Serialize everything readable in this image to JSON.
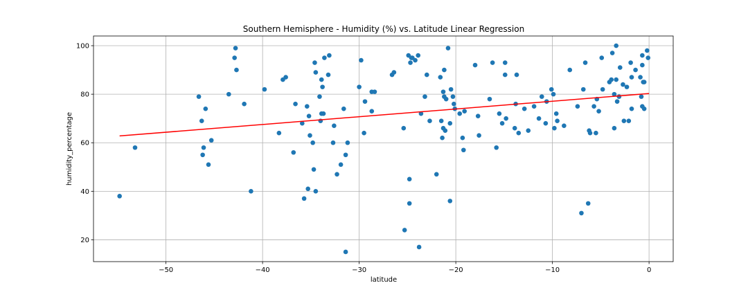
{
  "chart_data": {
    "type": "scatter",
    "title": "Southern Hemisphere - Humidity (%) vs. Latitude Linear Regression",
    "xlabel": "latitude",
    "ylabel": "humidity_percentage",
    "xlim": [
      -57.5,
      2.5
    ],
    "ylim": [
      11,
      104
    ],
    "xticks": [
      -50,
      -40,
      -30,
      -20,
      -10,
      0
    ],
    "yticks": [
      20,
      40,
      60,
      80,
      100
    ],
    "xtick_labels": [
      "−50",
      "−40",
      "−30",
      "−20",
      "−10",
      "0"
    ],
    "ytick_labels": [
      "20",
      "40",
      "60",
      "80",
      "100"
    ],
    "grid": true,
    "point_color": "#1f77b4",
    "line_color": "#ff0000",
    "regression": {
      "x": [
        -54.8,
        0.0
      ],
      "y": [
        62.8,
        80.3
      ]
    },
    "points": [
      [
        -54.8,
        38
      ],
      [
        -53.2,
        58
      ],
      [
        -46.6,
        79
      ],
      [
        -46.3,
        69
      ],
      [
        -46.2,
        55
      ],
      [
        -46.1,
        58
      ],
      [
        -45.9,
        74
      ],
      [
        -45.6,
        51
      ],
      [
        -45.3,
        61
      ],
      [
        -43.5,
        80
      ],
      [
        -42.9,
        95
      ],
      [
        -42.8,
        99
      ],
      [
        -42.7,
        90
      ],
      [
        -41.9,
        76
      ],
      [
        -41.2,
        40
      ],
      [
        -39.8,
        82
      ],
      [
        -38.3,
        64
      ],
      [
        -37.9,
        86
      ],
      [
        -37.6,
        87
      ],
      [
        -36.8,
        56
      ],
      [
        -36.6,
        76
      ],
      [
        -35.9,
        68
      ],
      [
        -35.7,
        37
      ],
      [
        -35.4,
        75
      ],
      [
        -35.3,
        41
      ],
      [
        -35.2,
        71
      ],
      [
        -35.1,
        63
      ],
      [
        -34.8,
        60
      ],
      [
        -34.7,
        49
      ],
      [
        -34.6,
        93
      ],
      [
        -34.5,
        40
      ],
      [
        -34.5,
        89
      ],
      [
        -34.1,
        79
      ],
      [
        -34.0,
        69
      ],
      [
        -33.9,
        86
      ],
      [
        -33.9,
        72
      ],
      [
        -33.8,
        83
      ],
      [
        -33.7,
        72
      ],
      [
        -33.6,
        95
      ],
      [
        -33.2,
        88
      ],
      [
        -33.1,
        96
      ],
      [
        -32.7,
        60
      ],
      [
        -32.6,
        67
      ],
      [
        -32.3,
        47
      ],
      [
        -31.9,
        51
      ],
      [
        -31.6,
        74
      ],
      [
        -31.4,
        55
      ],
      [
        -31.4,
        15
      ],
      [
        -31.2,
        60
      ],
      [
        -30.0,
        83
      ],
      [
        -29.8,
        94
      ],
      [
        -29.5,
        64
      ],
      [
        -29.4,
        77
      ],
      [
        -28.7,
        73
      ],
      [
        -28.7,
        81
      ],
      [
        -28.4,
        81
      ],
      [
        -26.6,
        88
      ],
      [
        -26.4,
        89
      ],
      [
        -25.4,
        66
      ],
      [
        -25.3,
        24
      ],
      [
        -24.9,
        96
      ],
      [
        -24.8,
        45
      ],
      [
        -24.8,
        35
      ],
      [
        -24.7,
        93
      ],
      [
        -24.6,
        95
      ],
      [
        -24.5,
        95
      ],
      [
        -24.2,
        94
      ],
      [
        -23.9,
        96
      ],
      [
        -23.8,
        17
      ],
      [
        -23.6,
        72
      ],
      [
        -23.2,
        79
      ],
      [
        -23.0,
        88
      ],
      [
        -22.7,
        69
      ],
      [
        -22.0,
        47
      ],
      [
        -21.6,
        87
      ],
      [
        -21.5,
        69
      ],
      [
        -21.4,
        62
      ],
      [
        -21.3,
        81
      ],
      [
        -21.3,
        66
      ],
      [
        -21.2,
        79
      ],
      [
        -21.2,
        90
      ],
      [
        -21.1,
        65
      ],
      [
        -21.0,
        78
      ],
      [
        -20.8,
        99
      ],
      [
        -20.6,
        36
      ],
      [
        -20.6,
        68
      ],
      [
        -20.5,
        82
      ],
      [
        -20.3,
        79
      ],
      [
        -20.2,
        76
      ],
      [
        -20.1,
        74
      ],
      [
        -19.6,
        72
      ],
      [
        -19.3,
        62
      ],
      [
        -19.2,
        57
      ],
      [
        -19.1,
        73
      ],
      [
        -18.0,
        92
      ],
      [
        -17.7,
        71
      ],
      [
        -17.6,
        63
      ],
      [
        -16.5,
        78
      ],
      [
        -16.2,
        93
      ],
      [
        -15.8,
        58
      ],
      [
        -15.5,
        72
      ],
      [
        -15.2,
        68
      ],
      [
        -14.9,
        88
      ],
      [
        -14.9,
        93
      ],
      [
        -14.8,
        70
      ],
      [
        -13.9,
        66
      ],
      [
        -13.8,
        76
      ],
      [
        -13.7,
        88
      ],
      [
        -13.5,
        64
      ],
      [
        -12.9,
        74
      ],
      [
        -12.5,
        65
      ],
      [
        -11.9,
        75
      ],
      [
        -11.4,
        70
      ],
      [
        -11.1,
        79
      ],
      [
        -10.7,
        68
      ],
      [
        -10.6,
        77
      ],
      [
        -10.1,
        82
      ],
      [
        -9.9,
        80
      ],
      [
        -9.8,
        66
      ],
      [
        -9.6,
        72
      ],
      [
        -9.5,
        69
      ],
      [
        -8.8,
        67
      ],
      [
        -8.2,
        90
      ],
      [
        -7.4,
        75
      ],
      [
        -7.0,
        31
      ],
      [
        -6.8,
        82
      ],
      [
        -6.6,
        93
      ],
      [
        -6.3,
        35
      ],
      [
        -6.2,
        65
      ],
      [
        -6.1,
        64
      ],
      [
        -5.7,
        75
      ],
      [
        -5.5,
        64
      ],
      [
        -5.4,
        78
      ],
      [
        -5.2,
        73
      ],
      [
        -4.9,
        95
      ],
      [
        -4.8,
        82
      ],
      [
        -4.1,
        85
      ],
      [
        -3.9,
        86
      ],
      [
        -3.8,
        97
      ],
      [
        -3.6,
        80
      ],
      [
        -3.6,
        66
      ],
      [
        -3.4,
        100
      ],
      [
        -3.4,
        86
      ],
      [
        -3.3,
        77
      ],
      [
        -3.1,
        79
      ],
      [
        -3.0,
        91
      ],
      [
        -2.7,
        84
      ],
      [
        -2.6,
        69
      ],
      [
        -2.3,
        83
      ],
      [
        -2.1,
        69
      ],
      [
        -1.9,
        93
      ],
      [
        -1.8,
        87
      ],
      [
        -1.8,
        74
      ],
      [
        -1.4,
        90
      ],
      [
        -0.9,
        87
      ],
      [
        -0.8,
        79
      ],
      [
        -0.7,
        96
      ],
      [
        -0.7,
        92
      ],
      [
        -0.7,
        75
      ],
      [
        -0.6,
        85
      ],
      [
        -0.5,
        85
      ],
      [
        -0.5,
        74
      ],
      [
        -0.2,
        98
      ],
      [
        -0.1,
        95
      ]
    ]
  }
}
